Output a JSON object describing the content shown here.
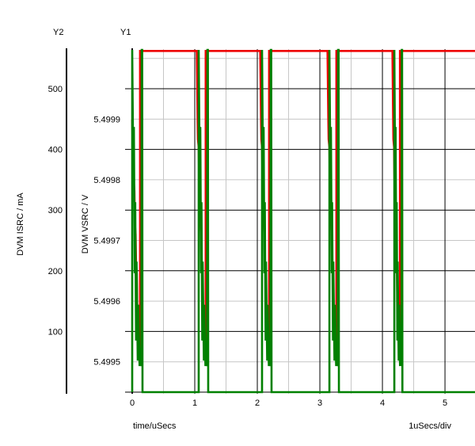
{
  "header": {
    "y2_name": "Y2",
    "y1_name": "Y1"
  },
  "chart_data": {
    "type": "line",
    "title": "",
    "x_axis": {
      "label": "time/uSecs",
      "div_label": "1uSecs/div",
      "range": [
        0,
        5.48
      ],
      "major_ticks": [
        {
          "v": 0,
          "label": "0"
        },
        {
          "v": 1,
          "label": "1"
        },
        {
          "v": 2,
          "label": "2"
        },
        {
          "v": 3,
          "label": "3"
        },
        {
          "v": 4,
          "label": "4"
        },
        {
          "v": 5,
          "label": "5"
        }
      ],
      "minor_ticks": [
        0.5,
        1.5,
        2.5,
        3.5,
        4.5
      ]
    },
    "y1_axis": {
      "name": "Y1",
      "label": "DVM VSRC / V",
      "range": [
        5.499447,
        5.500016
      ],
      "labeled_ticks": [
        {
          "v": 5.4999,
          "label": "5.4999"
        },
        {
          "v": 5.4998,
          "label": "5.4998"
        },
        {
          "v": 5.4997,
          "label": "5.4997"
        },
        {
          "v": 5.4996,
          "label": "5.4996"
        },
        {
          "v": 5.4995,
          "label": "5.4995"
        }
      ]
    },
    "y2_axis": {
      "name": "Y2",
      "label": "DVM ISRC / mA",
      "range": [
        -2.6,
        565.3
      ],
      "labeled_ticks": [
        {
          "v": 500,
          "label": "500"
        },
        {
          "v": 400,
          "label": "400"
        },
        {
          "v": 300,
          "label": "300"
        },
        {
          "v": 200,
          "label": "200"
        },
        {
          "v": 100,
          "label": "100"
        }
      ],
      "major_grid_values": [
        500,
        400,
        300,
        200,
        100,
        0
      ],
      "minor_grid_values": [
        550,
        450,
        350,
        250,
        150,
        50
      ]
    },
    "grid": {
      "major_color": "#000000",
      "minor_color": "#c6c6c6"
    },
    "series": [
      {
        "name": "DVM VSRC",
        "axis": "y1",
        "color": "#ee0000",
        "points": [
          [
            0,
            5.4999
          ],
          [
            0.005,
            5.499867
          ],
          [
            0.017,
            5.499854
          ],
          [
            0.023,
            5.499802
          ],
          [
            0.036,
            5.499782
          ],
          [
            0.042,
            5.49973
          ],
          [
            0.055,
            5.49971
          ],
          [
            0.061,
            5.499665
          ],
          [
            0.074,
            5.499645
          ],
          [
            0.08,
            5.499593
          ],
          [
            0.099,
            5.499573
          ],
          [
            0.106,
            5.49953
          ],
          [
            0.117,
            5.499521
          ],
          [
            0.125,
            5.499514
          ],
          [
            0.125,
            5.500013
          ],
          [
            1.033,
            5.500013
          ],
          [
            1.046,
            5.4999
          ],
          [
            1.051,
            5.499867
          ],
          [
            1.063,
            5.499854
          ],
          [
            1.069,
            5.499802
          ],
          [
            1.082,
            5.499782
          ],
          [
            1.088,
            5.49973
          ],
          [
            1.101,
            5.49971
          ],
          [
            1.107,
            5.499665
          ],
          [
            1.12,
            5.499645
          ],
          [
            1.126,
            5.499593
          ],
          [
            1.145,
            5.499573
          ],
          [
            1.152,
            5.49953
          ],
          [
            1.163,
            5.499521
          ],
          [
            1.175,
            5.499514
          ],
          [
            1.175,
            5.500013
          ],
          [
            2.046,
            5.500013
          ],
          [
            2.059,
            5.4999
          ],
          [
            2.064,
            5.499867
          ],
          [
            2.076,
            5.499854
          ],
          [
            2.082,
            5.499802
          ],
          [
            2.095,
            5.499782
          ],
          [
            2.101,
            5.49973
          ],
          [
            2.114,
            5.49971
          ],
          [
            2.12,
            5.499665
          ],
          [
            2.133,
            5.499645
          ],
          [
            2.139,
            5.499593
          ],
          [
            2.158,
            5.499573
          ],
          [
            2.165,
            5.49953
          ],
          [
            2.176,
            5.499521
          ],
          [
            2.188,
            5.499514
          ],
          [
            2.188,
            5.500013
          ],
          [
            3.122,
            5.500013
          ],
          [
            3.135,
            5.4999
          ],
          [
            3.14,
            5.499867
          ],
          [
            3.152,
            5.499854
          ],
          [
            3.158,
            5.499802
          ],
          [
            3.171,
            5.499782
          ],
          [
            3.177,
            5.49973
          ],
          [
            3.19,
            5.49971
          ],
          [
            3.196,
            5.499665
          ],
          [
            3.209,
            5.499645
          ],
          [
            3.215,
            5.499593
          ],
          [
            3.234,
            5.499573
          ],
          [
            3.241,
            5.49953
          ],
          [
            3.252,
            5.499521
          ],
          [
            3.264,
            5.499514
          ],
          [
            3.264,
            5.500013
          ],
          [
            4.16,
            5.500013
          ],
          [
            4.171,
            5.4999
          ],
          [
            4.175,
            5.499867
          ],
          [
            4.186,
            5.499854
          ],
          [
            4.191,
            5.499802
          ],
          [
            4.202,
            5.499782
          ],
          [
            4.207,
            5.49973
          ],
          [
            4.218,
            5.49971
          ],
          [
            4.223,
            5.499665
          ],
          [
            4.234,
            5.499645
          ],
          [
            4.24,
            5.499593
          ],
          [
            4.256,
            5.499573
          ],
          [
            4.262,
            5.49953
          ],
          [
            4.271,
            5.499521
          ],
          [
            4.28,
            5.499514
          ],
          [
            4.28,
            5.500013
          ],
          [
            5.48,
            5.500013
          ]
        ]
      },
      {
        "name": "DVM ISRC",
        "axis": "y2",
        "color": "#008000",
        "points": [
          [
            0,
            0
          ],
          [
            0,
            564
          ],
          [
            0.021,
            313
          ],
          [
            0.027,
            437
          ],
          [
            0.041,
            196
          ],
          [
            0.048,
            313
          ],
          [
            0.062,
            85
          ],
          [
            0.069,
            215
          ],
          [
            0.089,
            52
          ],
          [
            0.097,
            144
          ],
          [
            0.118,
            43
          ],
          [
            0.124,
            72
          ],
          [
            0.145,
            43
          ],
          [
            0.152,
            564
          ],
          [
            0.16,
            564
          ],
          [
            0.165,
            0
          ],
          [
            1.063,
            0
          ],
          [
            1.063,
            564
          ],
          [
            1.082,
            313
          ],
          [
            1.088,
            437
          ],
          [
            1.101,
            196
          ],
          [
            1.107,
            313
          ],
          [
            1.12,
            85
          ],
          [
            1.126,
            215
          ],
          [
            1.145,
            52
          ],
          [
            1.152,
            144
          ],
          [
            1.171,
            43
          ],
          [
            1.177,
            72
          ],
          [
            1.196,
            43
          ],
          [
            1.202,
            564
          ],
          [
            1.21,
            564
          ],
          [
            1.215,
            0
          ],
          [
            2.076,
            0
          ],
          [
            2.076,
            564
          ],
          [
            2.095,
            313
          ],
          [
            2.101,
            437
          ],
          [
            2.114,
            196
          ],
          [
            2.12,
            313
          ],
          [
            2.133,
            85
          ],
          [
            2.139,
            215
          ],
          [
            2.158,
            52
          ],
          [
            2.165,
            144
          ],
          [
            2.184,
            43
          ],
          [
            2.19,
            72
          ],
          [
            2.209,
            43
          ],
          [
            2.215,
            564
          ],
          [
            2.223,
            564
          ],
          [
            2.228,
            0
          ],
          [
            3.152,
            0
          ],
          [
            3.152,
            564
          ],
          [
            3.171,
            313
          ],
          [
            3.177,
            437
          ],
          [
            3.19,
            196
          ],
          [
            3.196,
            313
          ],
          [
            3.209,
            85
          ],
          [
            3.215,
            215
          ],
          [
            3.234,
            52
          ],
          [
            3.241,
            144
          ],
          [
            3.26,
            43
          ],
          [
            3.266,
            72
          ],
          [
            3.285,
            43
          ],
          [
            3.291,
            564
          ],
          [
            3.299,
            564
          ],
          [
            3.304,
            0
          ],
          [
            4.19,
            0
          ],
          [
            4.19,
            564
          ],
          [
            4.206,
            313
          ],
          [
            4.211,
            437
          ],
          [
            4.222,
            196
          ],
          [
            4.228,
            313
          ],
          [
            4.239,
            85
          ],
          [
            4.244,
            215
          ],
          [
            4.26,
            52
          ],
          [
            4.266,
            144
          ],
          [
            4.282,
            43
          ],
          [
            4.287,
            72
          ],
          [
            4.304,
            43
          ],
          [
            4.309,
            564
          ],
          [
            4.315,
            564
          ],
          [
            4.32,
            0
          ],
          [
            5.48,
            0
          ]
        ]
      }
    ]
  }
}
